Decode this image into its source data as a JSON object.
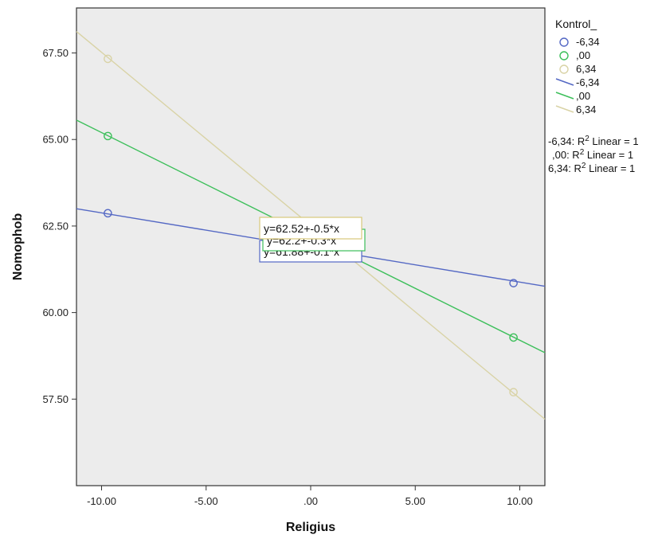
{
  "chart_data": {
    "type": "line",
    "xlabel": "Religius",
    "ylabel": "Nomophob",
    "xlim": [
      -11.2,
      11.2
    ],
    "ylim": [
      55.0,
      68.8
    ],
    "x_ticks": [
      {
        "value": -10,
        "label": "-10.00"
      },
      {
        "value": -5,
        "label": "-5.00"
      },
      {
        "value": 0,
        "label": ".00"
      },
      {
        "value": 5,
        "label": "5.00"
      },
      {
        "value": 10,
        "label": "10.00"
      }
    ],
    "y_ticks": [
      {
        "value": 57.5,
        "label": "57.50"
      },
      {
        "value": 60.0,
        "label": "60.00"
      },
      {
        "value": 62.5,
        "label": "62.50"
      },
      {
        "value": 65.0,
        "label": "65.00"
      },
      {
        "value": 67.5,
        "label": "67.50"
      }
    ],
    "grid": false,
    "legend_title": "Kontrol_",
    "legend_placement": "right",
    "series": [
      {
        "name": "-6,34",
        "color": "#5468c4",
        "intercept": 61.88,
        "slope": -0.1,
        "points": [
          {
            "x": -9.7,
            "y": 62.87
          },
          {
            "x": 9.7,
            "y": 60.85
          }
        ]
      },
      {
        "name": ",00",
        "color": "#3cbf5a",
        "intercept": 62.2,
        "slope": -0.3,
        "points": [
          {
            "x": -9.7,
            "y": 65.1
          },
          {
            "x": 9.7,
            "y": 59.28
          }
        ]
      },
      {
        "name": "6,34",
        "color": "#d9d3a6",
        "intercept": 62.52,
        "slope": -0.5,
        "points": [
          {
            "x": -9.7,
            "y": 67.33
          },
          {
            "x": 9.7,
            "y": 57.7
          }
        ]
      }
    ],
    "fit_labels": [
      {
        "prefix": "-6,34: R",
        "sup": "2",
        "suffix": " Linear = 1"
      },
      {
        "prefix": ",00: R",
        "sup": "2",
        "suffix": " Linear = 1"
      },
      {
        "prefix": "6,34: R",
        "sup": "2",
        "suffix": " Linear = 1"
      }
    ],
    "equations": [
      {
        "text": "y=61.88+-0.1*x",
        "border": "#5468c4"
      },
      {
        "text": "y=62.2+-0.3*x",
        "border": "#3cbf5a"
      },
      {
        "text": "y=62.52+-0.5*x",
        "border": "#d9c97a"
      }
    ],
    "plot_background": "#ececec"
  }
}
